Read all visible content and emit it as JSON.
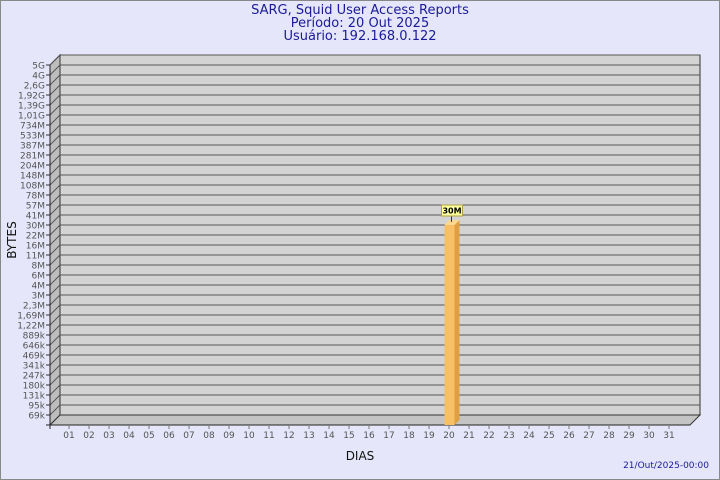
{
  "header": {
    "title": "SARG, Squid User Access Reports",
    "period": "Período: 20 Out 2025",
    "user": "Usuário: 192.168.0.122"
  },
  "footer": {
    "timestamp": "21/Out/2025-00:00"
  },
  "colors": {
    "background": "#e6e6fa",
    "plot": "#d3d3d3",
    "bar": "#f7c066",
    "bar_side": "#e0a040",
    "title": "#1a1a9a"
  },
  "chart_data": {
    "type": "bar",
    "xlabel": "DIAS",
    "ylabel": "BYTES",
    "y_scale": "log",
    "grid": true,
    "y_tick_labels": [
      "5G",
      "4G",
      "2,6G",
      "1,92G",
      "1,39G",
      "1,01G",
      "734M",
      "533M",
      "387M",
      "281M",
      "204M",
      "148M",
      "108M",
      "78M",
      "57M",
      "41M",
      "30M",
      "22M",
      "16M",
      "11M",
      "8M",
      "6M",
      "4M",
      "3M",
      "2,3M",
      "1,69M",
      "1,22M",
      "889k",
      "646k",
      "469k",
      "341k",
      "247k",
      "180k",
      "131k",
      "95k",
      "69k"
    ],
    "categories": [
      "01",
      "02",
      "03",
      "04",
      "05",
      "06",
      "07",
      "08",
      "09",
      "10",
      "11",
      "12",
      "13",
      "14",
      "15",
      "16",
      "17",
      "18",
      "19",
      "20",
      "21",
      "22",
      "23",
      "24",
      "25",
      "26",
      "27",
      "28",
      "29",
      "30",
      "31"
    ],
    "values": [
      null,
      null,
      null,
      null,
      null,
      null,
      null,
      null,
      null,
      null,
      null,
      null,
      null,
      null,
      null,
      null,
      null,
      null,
      null,
      "30M",
      null,
      null,
      null,
      null,
      null,
      null,
      null,
      null,
      null,
      null,
      null
    ],
    "data_labels": [
      {
        "day": "20",
        "label": "30M"
      }
    ]
  }
}
